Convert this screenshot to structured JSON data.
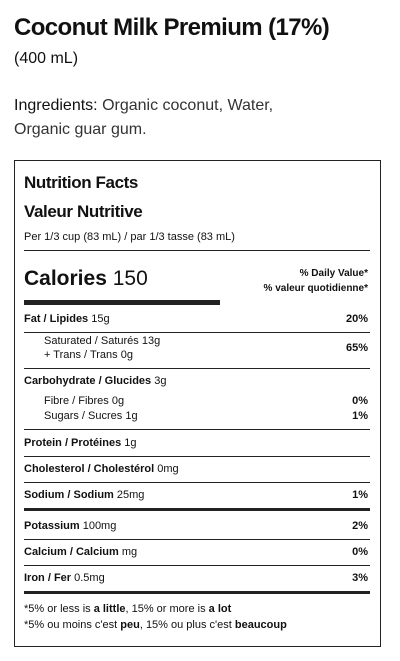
{
  "product": {
    "title": "Coconut Milk Premium (17%)",
    "size": "(400 mL)"
  },
  "ingredients": {
    "label": "Ingredients:",
    "text": "Organic coconut, Water, Organic guar gum."
  },
  "panel": {
    "title_en": "Nutrition Facts",
    "title_fr": "Valeur Nutritive",
    "serving": "Per 1/3 cup (83 mL) / par 1/3 tasse (83 mL)",
    "calories": {
      "label": "Calories",
      "value": 150
    },
    "dv_header": [
      "% Daily Value*",
      "% valeur quotidienne*"
    ],
    "fat": {
      "label": "Fat / Lipides",
      "amount": "15g",
      "dv": "20%"
    },
    "saturated_trans": {
      "saturated": {
        "label": "Saturated / Saturés",
        "amount": "13g"
      },
      "trans": {
        "label": "+ Trans / Trans",
        "amount": "0g"
      },
      "dv": "65%"
    },
    "carbohydrate": {
      "label": "Carbohydrate / Glucides",
      "amount": "3g"
    },
    "fibre": {
      "label": "Fibre / Fibres",
      "amount": "0g",
      "dv": "0%"
    },
    "sugars": {
      "label": "Sugars / Sucres",
      "amount": "1g",
      "dv": "1%"
    },
    "protein": {
      "label": "Protein / Protéines",
      "amount": "1g"
    },
    "cholesterol": {
      "label": "Cholesterol / Cholestérol",
      "amount": "0mg"
    },
    "sodium": {
      "label": "Sodium / Sodium",
      "amount": "25mg",
      "dv": "1%"
    },
    "potassium": {
      "label": "Potassium",
      "amount": "100mg",
      "dv": "2%"
    },
    "calcium": {
      "label": "Calcium / Calcium",
      "amount": "mg",
      "dv": "0%"
    },
    "iron": {
      "label": "Iron / Fer",
      "amount": "0.5mg",
      "dv": "3%"
    },
    "footnote": [
      [
        "*5% or less is ",
        "a little",
        ", 15% or more is ",
        "a lot"
      ],
      [
        "*5% ou moins c'est ",
        "peu",
        ", 15% ou plus c'est ",
        "beaucoup"
      ]
    ]
  }
}
